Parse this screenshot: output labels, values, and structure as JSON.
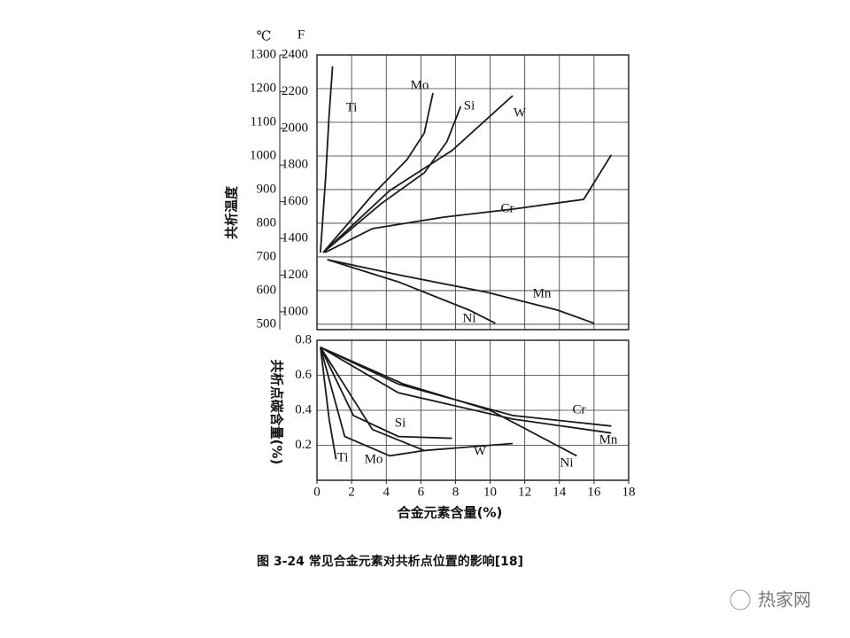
{
  "chart_data": [
    {
      "type": "line",
      "ylabel": "共析温度",
      "yunit": "℃",
      "y2unit": "F",
      "xlim": [
        0,
        18
      ],
      "ylim": [
        484,
        1300
      ],
      "yticks": [
        500,
        600,
        700,
        800,
        900,
        1000,
        1100,
        1200,
        1300
      ],
      "y2lim": [
        903,
        2400
      ],
      "y2ticks": [
        1000,
        1200,
        1400,
        1600,
        1800,
        2000,
        2200,
        2400
      ],
      "grid": true,
      "series": [
        {
          "name": "Ti",
          "color": "#1a1a1a",
          "x": [
            0.2,
            0.5,
            0.7,
            0.9
          ],
          "values": [
            713,
            937,
            1121,
            1266
          ]
        },
        {
          "name": "Mo",
          "color": "#1a1a1a",
          "x": [
            0.36,
            3.2,
            5.2,
            6.2,
            6.7
          ],
          "values": [
            713,
            884,
            989,
            1068,
            1187
          ]
        },
        {
          "name": "Si",
          "color": "#1a1a1a",
          "x": [
            0.36,
            3.7,
            6.2,
            7.5,
            8.3
          ],
          "values": [
            713,
            858,
            950,
            1042,
            1147
          ]
        },
        {
          "name": "W",
          "color": "#1a1a1a",
          "x": [
            0.36,
            4.2,
            7.8,
            11.3
          ],
          "values": [
            713,
            897,
            1016,
            1179
          ]
        },
        {
          "name": "Cr",
          "color": "#1a1a1a",
          "x": [
            0.46,
            3.2,
            7.3,
            11.3,
            15.4,
            17
          ],
          "values": [
            713,
            784,
            818,
            842,
            871,
            1003
          ]
        },
        {
          "name": "Mn",
          "color": "#1a1a1a",
          "x": [
            0.6,
            4.7,
            9.8,
            13.9,
            16
          ],
          "values": [
            692,
            647,
            595,
            542,
            503
          ]
        },
        {
          "name": "Ni",
          "color": "#1a1a1a",
          "x": [
            0.6,
            4.7,
            8.8,
            10.3
          ],
          "values": [
            692,
            626,
            542,
            503
          ]
        }
      ]
    },
    {
      "type": "line",
      "ylabel": "共析点碳含量(%)",
      "xlabel": "合金元素含量(%)",
      "xlim": [
        0,
        18
      ],
      "xticks": [
        0,
        2,
        4,
        6,
        8,
        10,
        12,
        14,
        16,
        18
      ],
      "ylim": [
        0,
        0.8
      ],
      "yticks": [
        0.2,
        0.4,
        0.6,
        0.8
      ],
      "grid": true,
      "series": [
        {
          "name": "Ti",
          "color": "#1a1a1a",
          "x": [
            0.2,
            0.7,
            1.1
          ],
          "values": [
            0.76,
            0.35,
            0.12
          ]
        },
        {
          "name": "Mo",
          "color": "#1a1a1a",
          "x": [
            0.2,
            1.6,
            4.2,
            6.2
          ],
          "values": [
            0.76,
            0.25,
            0.14,
            0.17
          ]
        },
        {
          "name": "Si",
          "color": "#1a1a1a",
          "x": [
            0.2,
            2.1,
            4.7,
            7.8
          ],
          "values": [
            0.76,
            0.37,
            0.25,
            0.24
          ]
        },
        {
          "name": "W",
          "color": "#1a1a1a",
          "x": [
            0.2,
            3.2,
            6.2,
            11.3
          ],
          "values": [
            0.76,
            0.29,
            0.17,
            0.21
          ]
        },
        {
          "name": "Cr",
          "color": "#1a1a1a",
          "x": [
            0.2,
            4.7,
            11.3,
            17
          ],
          "values": [
            0.76,
            0.55,
            0.37,
            0.31
          ]
        },
        {
          "name": "Mn",
          "color": "#1a1a1a",
          "x": [
            0.2,
            4.7,
            11.3,
            17
          ],
          "values": [
            0.76,
            0.5,
            0.35,
            0.27
          ]
        },
        {
          "name": "Ni",
          "color": "#1a1a1a",
          "x": [
            0.2,
            5,
            10,
            15
          ],
          "values": [
            0.76,
            0.55,
            0.4,
            0.14
          ]
        }
      ]
    }
  ],
  "caption": "图 3-24  常见合金元素对共析点位置的影响[18]",
  "watermark": "热家网"
}
